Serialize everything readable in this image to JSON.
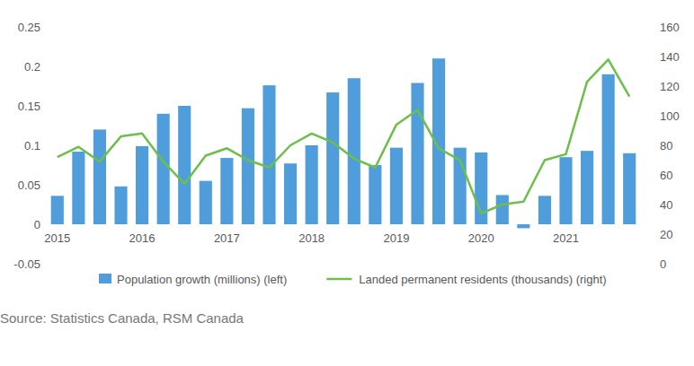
{
  "chart_data": {
    "type": "bar",
    "source": "Source: Statistics Canada, RSM Canada",
    "categories": [
      "2015",
      null,
      null,
      null,
      "2016",
      null,
      null,
      null,
      "2017",
      null,
      null,
      null,
      "2018",
      null,
      null,
      null,
      "2019",
      null,
      null,
      null,
      "2020",
      null,
      null,
      null,
      "2021",
      null,
      null,
      null
    ],
    "series": [
      {
        "name": "Population growth (millions) (left)",
        "type": "bar",
        "color": "#4f9edb",
        "values": [
          0.036,
          0.092,
          0.12,
          0.048,
          0.099,
          0.14,
          0.15,
          0.055,
          0.084,
          0.147,
          0.176,
          0.077,
          0.1,
          0.167,
          0.185,
          0.075,
          0.097,
          0.179,
          0.21,
          0.097,
          0.091,
          0.037,
          -0.005,
          0.036,
          0.085,
          0.093,
          0.19,
          0.09
        ]
      },
      {
        "name": "Landed permanent residents (thousands) (right)",
        "type": "line",
        "axis": "y2",
        "color": "#6cbf4a",
        "values": [
          72,
          79,
          69,
          86,
          88,
          69,
          54,
          73,
          78,
          70,
          65,
          80,
          88,
          82,
          71,
          65,
          94,
          104,
          78,
          70,
          34,
          40,
          42,
          70,
          74,
          123,
          138,
          113
        ]
      }
    ],
    "ylim": [
      -0.05,
      0.25
    ],
    "yticks": [
      -0.05,
      0,
      0.05,
      0.1,
      0.15,
      0.2,
      0.25
    ],
    "y2lim": [
      0,
      160
    ],
    "y2ticks": [
      0,
      20,
      40,
      60,
      80,
      100,
      120,
      140,
      160
    ],
    "grid": false,
    "legend": "bottom"
  }
}
